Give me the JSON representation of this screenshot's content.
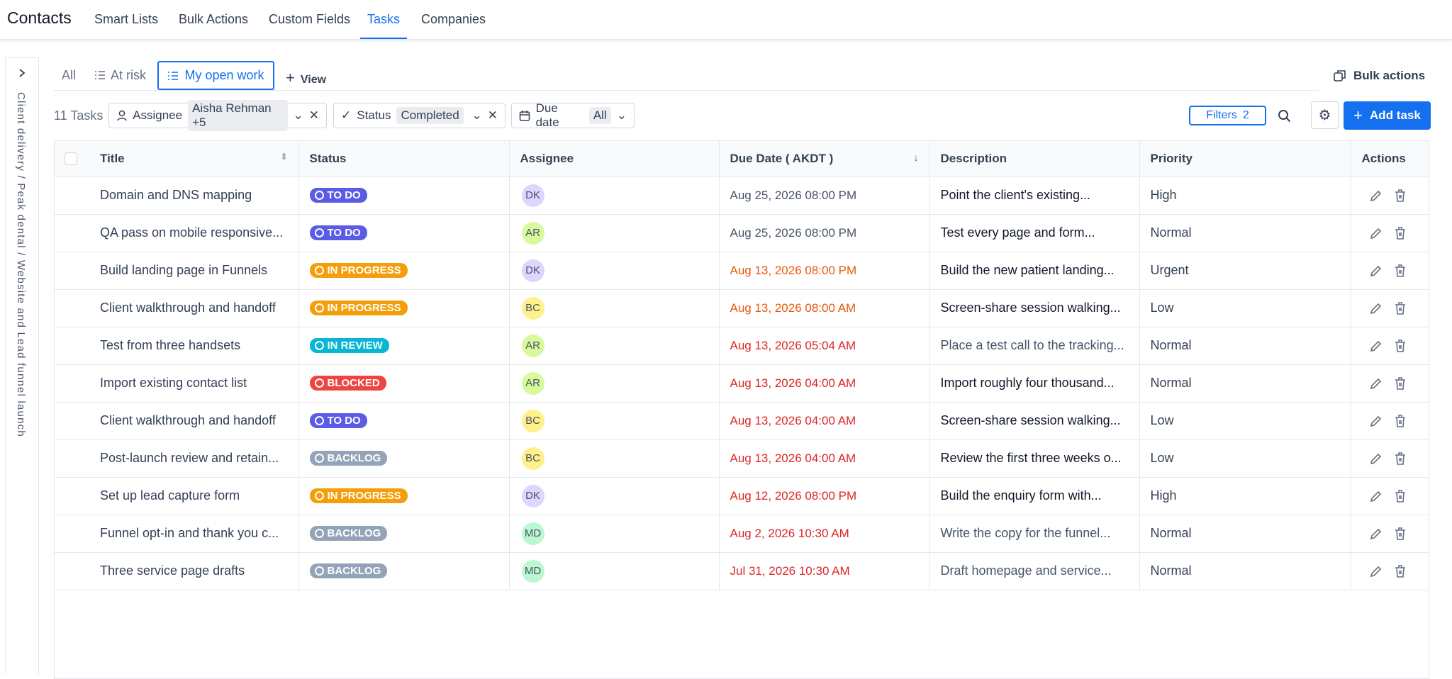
{
  "nav": {
    "title": "Contacts",
    "tabs": [
      "Smart Lists",
      "Bulk Actions",
      "Custom Fields",
      "Tasks",
      "Companies"
    ]
  },
  "sidebar": {
    "breadcrumb": "Client delivery / Peak dental / Website and Lead funnel launch"
  },
  "views": {
    "tabs": [
      "All",
      "At risk",
      "My open work"
    ],
    "add_view": "View",
    "bulk_actions": "Bulk actions"
  },
  "filters": {
    "count": "11 Tasks",
    "assignee": {
      "label": "Assignee",
      "value": "Aisha Rehman +5"
    },
    "status": {
      "label": "Status",
      "value": "Completed"
    },
    "due_date": {
      "label": "Due date",
      "value": "All"
    },
    "filters_button": {
      "label": "Filters",
      "count": "2"
    },
    "add_task": "Add task"
  },
  "table": {
    "headers": [
      "Title",
      "Status",
      "Assignee",
      "Due Date ( AKDT )",
      "Description",
      "Priority",
      "Actions"
    ],
    "rows": [
      {
        "title": "Domain and DNS mapping",
        "status": {
          "label": "TO DO",
          "color": "#5b5ce6"
        },
        "assignee": {
          "initials": "DK",
          "color": "#ddd6fe"
        },
        "due": "Aug 25, 2026 08:00 PM",
        "description": "Point the client's existing...",
        "priority": "High"
      },
      {
        "title": "QA pass on mobile responsive...",
        "status": {
          "label": "TO DO",
          "color": "#5b5ce6"
        },
        "assignee": {
          "initials": "AR",
          "color": "#d9f99d"
        },
        "due": "Aug 25, 2026 08:00 PM",
        "description": "Test every page and form...",
        "priority": "Normal"
      },
      {
        "title": "Build landing page in Funnels",
        "status": {
          "label": "IN PROGRESS",
          "color": "#f59e0b"
        },
        "assignee": {
          "initials": "DK",
          "color": "#ddd6fe"
        },
        "due": "Aug 13, 2026 08:00 PM",
        "description": "Build the new patient landing...",
        "priority": "Urgent"
      },
      {
        "title": "Client walkthrough and handoff",
        "status": {
          "label": "IN PROGRESS",
          "color": "#f59e0b"
        },
        "assignee": {
          "initials": "BC",
          "color": "#fef08a"
        },
        "due": "Aug 13, 2026 08:00 AM",
        "description": "Screen-share session walking...",
        "priority": "Low"
      },
      {
        "title": "Test from three handsets",
        "status": {
          "label": "IN REVIEW",
          "color": "#06b6d4"
        },
        "assignee": {
          "initials": "AR",
          "color": "#d9f99d"
        },
        "due": "Aug 13, 2026 05:04 AM",
        "description": "Place a test call to the tracking...",
        "priority": "Normal"
      },
      {
        "title": "Import existing contact list",
        "status": {
          "label": "BLOCKED",
          "color": "#ef4444"
        },
        "assignee": {
          "initials": "AR",
          "color": "#d9f99d"
        },
        "due": "Aug 13, 2026 04:00 AM",
        "description": "Import roughly four thousand...",
        "priority": "Normal"
      },
      {
        "title": "Client walkthrough and handoff",
        "status": {
          "label": "TO DO",
          "color": "#5b5ce6"
        },
        "assignee": {
          "initials": "BC",
          "color": "#fef08a"
        },
        "due": "Aug 13, 2026 04:00 AM",
        "description": "Screen-share session walking...",
        "priority": "Low"
      },
      {
        "title": "Post-launch review and retain...",
        "status": {
          "label": "BACKLOG",
          "color": "#94a3b8"
        },
        "assignee": {
          "initials": "BC",
          "color": "#fef08a"
        },
        "due": "Aug 13, 2026 04:00 AM",
        "description": "Review the first three weeks o...",
        "priority": "Low"
      },
      {
        "title": "Set up lead capture form",
        "status": {
          "label": "IN PROGRESS",
          "color": "#f59e0b"
        },
        "assignee": {
          "initials": "DK",
          "color": "#ddd6fe"
        },
        "due": "Aug 12, 2026 08:00 PM",
        "description": "Build the enquiry form with...",
        "priority": "High"
      },
      {
        "title": "Funnel opt-in and thank you c...",
        "status": {
          "label": "BACKLOG",
          "color": "#94a3b8"
        },
        "assignee": {
          "initials": "MD",
          "color": "#bbf7d0"
        },
        "due": "Aug 2, 2026 10:30 AM",
        "description": "Write the copy for the funnel...",
        "priority": "Normal"
      },
      {
        "title": "Three service page drafts",
        "status": {
          "label": "BACKLOG",
          "color": "#94a3b8"
        },
        "assignee": {
          "initials": "MD",
          "color": "#bbf7d0"
        },
        "due": "Jul 31, 2026 10:30 AM",
        "description": "Draft homepage and service...",
        "priority": "Normal"
      }
    ]
  }
}
